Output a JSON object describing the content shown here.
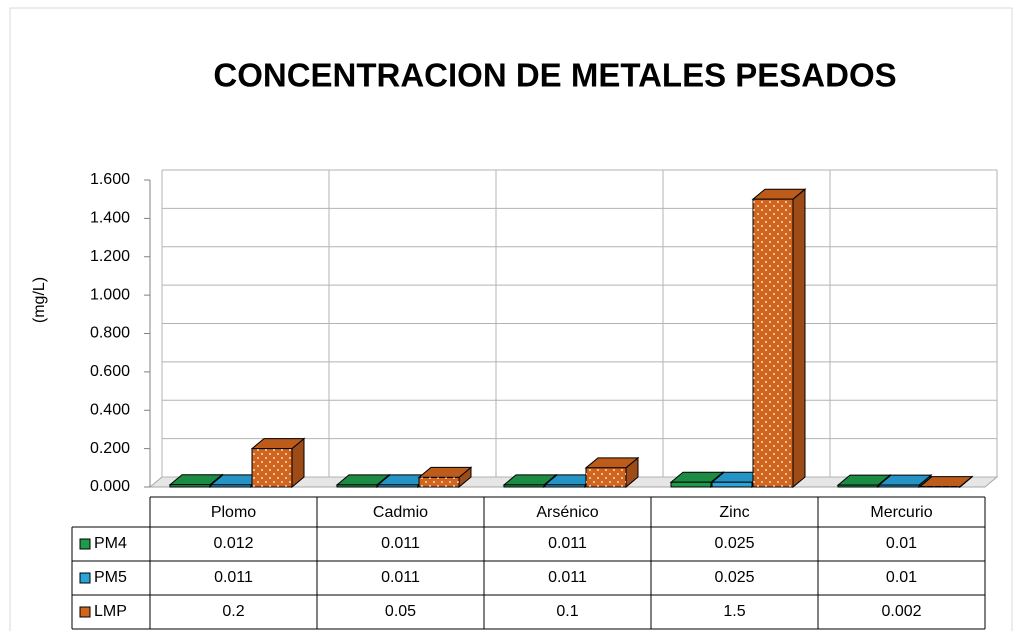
{
  "chart_data": {
    "type": "bar3d",
    "title": "CONCENTRACION DE METALES PESADOS",
    "ylabel": "(mg/L)",
    "categories": [
      "Plomo",
      "Cadmio",
      "Arsénico",
      "Zinc",
      "Mercurio"
    ],
    "series": [
      {
        "name": "PM4",
        "color": "#1f9a4b",
        "values": [
          0.012,
          0.011,
          0.011,
          0.025,
          0.01
        ]
      },
      {
        "name": "PM5",
        "color": "#29a3d9",
        "values": [
          0.011,
          0.011,
          0.011,
          0.025,
          0.01
        ]
      },
      {
        "name": "LMP",
        "color": "#d2651e",
        "values": [
          0.2,
          0.05,
          0.1,
          1.5,
          0.002
        ]
      }
    ],
    "ylim": [
      0,
      1.6
    ],
    "yticks": [
      {
        "value": 0,
        "label": "0.000"
      },
      {
        "value": 0.2,
        "label": "0.200"
      },
      {
        "value": 0.4,
        "label": "0.400"
      },
      {
        "value": 0.6,
        "label": "0.600"
      },
      {
        "value": 0.8,
        "label": "0.800"
      },
      {
        "value": 1,
        "label": "1.000"
      },
      {
        "value": 1.2,
        "label": "1.200"
      },
      {
        "value": 1.4,
        "label": "1.400"
      },
      {
        "value": 1.6,
        "label": "1.600"
      }
    ],
    "grid": true
  }
}
